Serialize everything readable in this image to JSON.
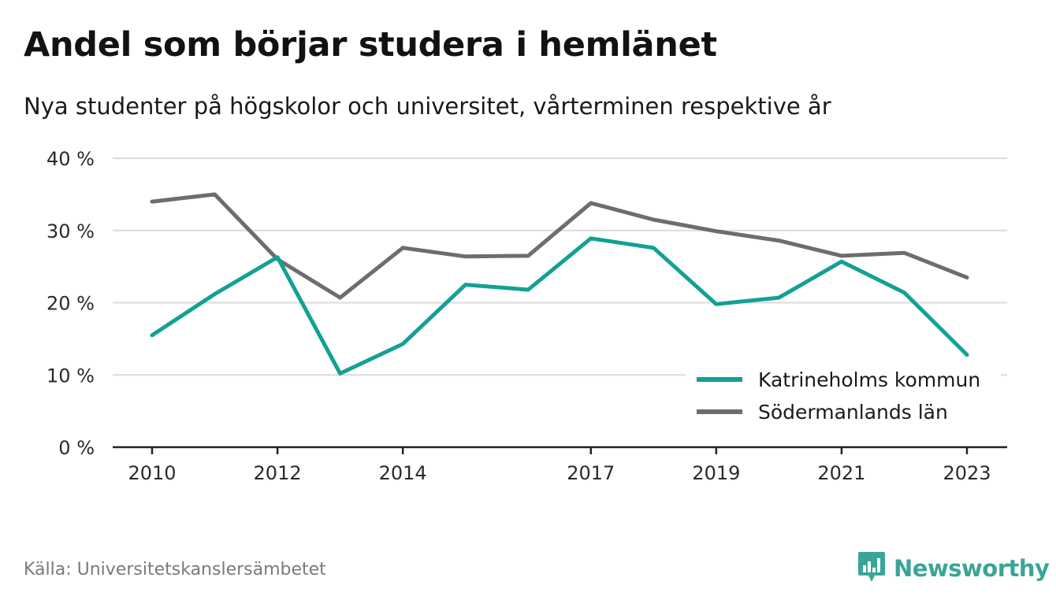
{
  "title": "Andel som börjar studera i hemlänet",
  "subtitle": "Nya studenter på högskolor och universitet, vårterminen respektive år",
  "source": "Källa: Universitetskanslersämbetet",
  "brand": {
    "name": "Newsworthy",
    "icon": "newsworthy-logo-icon",
    "color": "#3aa597"
  },
  "chart_data": {
    "type": "line",
    "x": [
      2010,
      2011,
      2012,
      2013,
      2014,
      2015,
      2016,
      2017,
      2018,
      2019,
      2020,
      2021,
      2022,
      2023
    ],
    "x_tick_labels": [
      "2010",
      "2012",
      "2014",
      "2017",
      "2019",
      "2021",
      "2023"
    ],
    "y_ticks": [
      0,
      10,
      20,
      30,
      40
    ],
    "y_tick_labels": [
      "0 %",
      "10 %",
      "20 %",
      "30 %",
      "40 %"
    ],
    "ylim": [
      0,
      40
    ],
    "grid": true,
    "legend_position": "bottom-right",
    "series": [
      {
        "name": "Katrineholms kommun",
        "color": "#13a095",
        "values": [
          15.5,
          21.2,
          26.3,
          10.2,
          14.3,
          22.5,
          21.8,
          28.9,
          27.6,
          19.8,
          20.7,
          25.7,
          21.4,
          12.8
        ]
      },
      {
        "name": "Södermanlands län",
        "color": "#6d6c72",
        "values": [
          34.0,
          35.0,
          26.0,
          20.7,
          27.6,
          26.4,
          26.5,
          33.8,
          31.5,
          29.9,
          28.6,
          26.5,
          26.9,
          23.5
        ]
      }
    ]
  }
}
